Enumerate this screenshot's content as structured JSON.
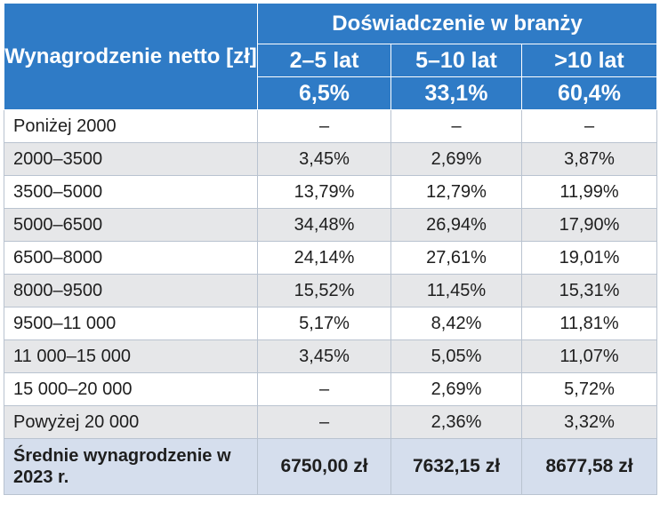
{
  "header": {
    "row_label": "Wynagrodzenie netto [zł]",
    "group_label": "Doświadczenie w branży",
    "columns": [
      {
        "years": "2–5 lat",
        "share": "6,5%"
      },
      {
        "years": "5–10 lat",
        "share": "33,1%"
      },
      {
        "years": ">10 lat",
        "share": "60,4%"
      }
    ]
  },
  "rows": [
    {
      "range": "Poniżej 2000",
      "values": [
        "–",
        "–",
        "–"
      ]
    },
    {
      "range": "2000–3500",
      "values": [
        "3,45%",
        "2,69%",
        "3,87%"
      ]
    },
    {
      "range": "3500–5000",
      "values": [
        "13,79%",
        "12,79%",
        "11,99%"
      ]
    },
    {
      "range": "5000–6500",
      "values": [
        "34,48%",
        "26,94%",
        "17,90%"
      ]
    },
    {
      "range": "6500–8000",
      "values": [
        "24,14%",
        "27,61%",
        "19,01%"
      ]
    },
    {
      "range": "8000–9500",
      "values": [
        "15,52%",
        "11,45%",
        "15,31%"
      ]
    },
    {
      "range": "9500–11 000",
      "values": [
        "5,17%",
        "8,42%",
        "11,81%"
      ]
    },
    {
      "range": "11 000–15 000",
      "values": [
        "3,45%",
        "5,05%",
        "11,07%"
      ]
    },
    {
      "range": "15 000–20 000",
      "values": [
        "–",
        "2,69%",
        "5,72%"
      ]
    },
    {
      "range": "Powyżej 20 000",
      "values": [
        "–",
        "2,36%",
        "3,32%"
      ]
    }
  ],
  "footer": {
    "label": "Średnie wynagrodzenie w 2023 r.",
    "values": [
      "6750,00 zł",
      "7632,15 zł",
      "8677,58 zł"
    ]
  }
}
